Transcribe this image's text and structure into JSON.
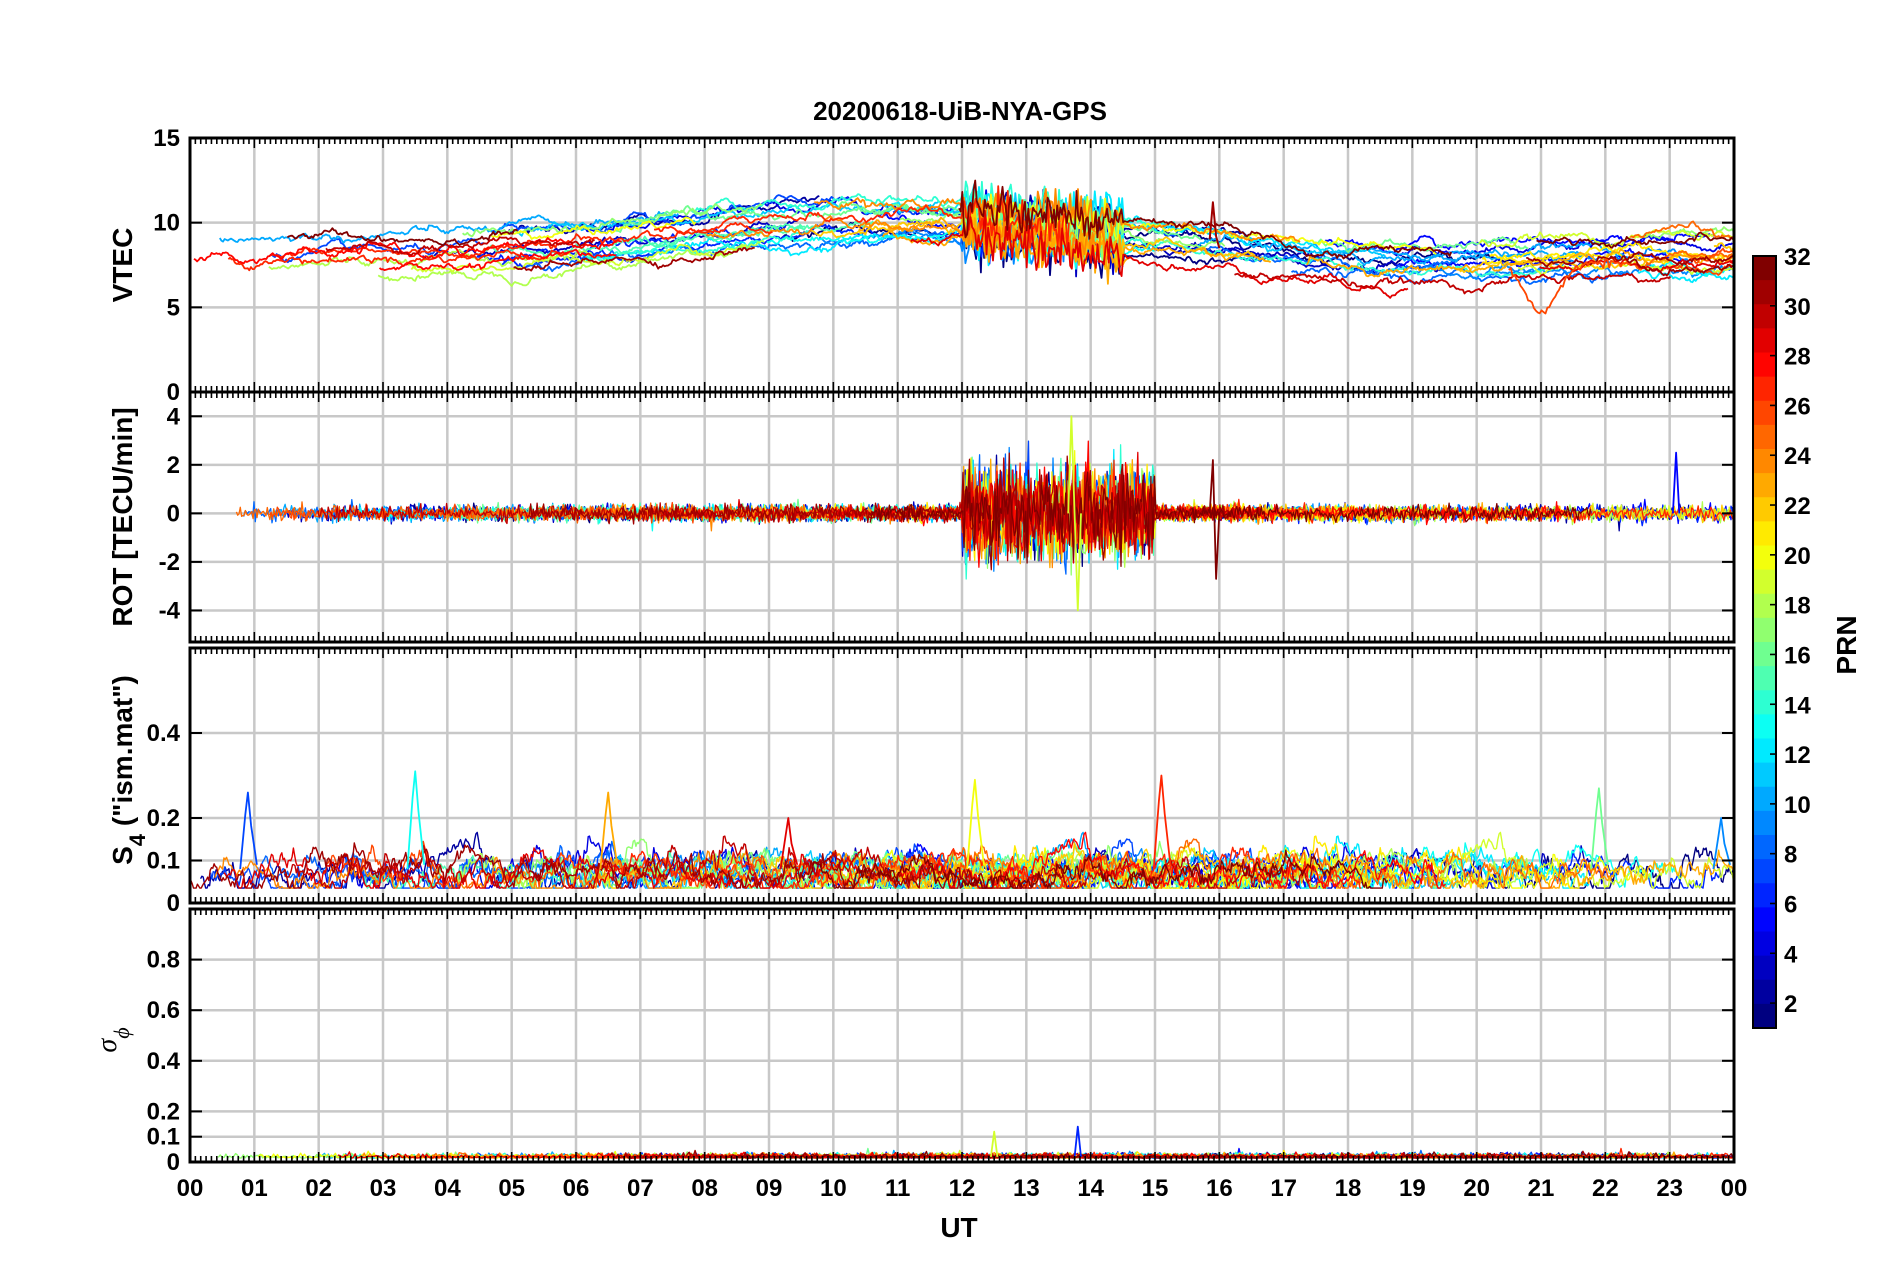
{
  "title": "20200618-UiB-NYA-GPS",
  "xlabel": "UT",
  "x_ticks": [
    "00",
    "01",
    "02",
    "03",
    "04",
    "05",
    "06",
    "07",
    "08",
    "09",
    "10",
    "11",
    "12",
    "13",
    "14",
    "15",
    "16",
    "17",
    "18",
    "19",
    "20",
    "21",
    "22",
    "23",
    "00"
  ],
  "colorbar": {
    "label": "PRN",
    "ticks": [
      "2",
      "4",
      "6",
      "8",
      "10",
      "12",
      "14",
      "16",
      "18",
      "20",
      "22",
      "24",
      "26",
      "28",
      "30",
      "32"
    ],
    "range": [
      1,
      32
    ],
    "colormap": "jet",
    "dark_blue": "#00008f",
    "dark_red": "#800000"
  },
  "panels": [
    {
      "ylabel": "VTEC",
      "ytick_labels": [
        "0",
        "5",
        "10",
        "15"
      ]
    },
    {
      "ylabel": "ROT [TECU/min]",
      "ytick_labels": [
        "-4",
        "-2",
        "0",
        "2",
        "4"
      ]
    },
    {
      "ylabel_main": "S",
      "ylabel_sub": "4",
      "ylabel_rest": " (\"ism.mat\")",
      "ytick_labels": [
        "0",
        "0.1",
        "0.2",
        "0.4"
      ]
    },
    {
      "ylabel_main": "σ",
      "ylabel_sub": "ϕ",
      "ytick_labels": [
        "0",
        "0.1",
        "0.2",
        "0.4",
        "0.6",
        "0.8"
      ]
    }
  ],
  "chart_data": [
    {
      "type": "line",
      "title": "20200618-UiB-NYA-GPS",
      "ylabel": "VTEC",
      "xlabel": "UT",
      "x_unit": "hours UT",
      "xlim": [
        0,
        24
      ],
      "ylim": [
        0,
        15
      ],
      "grid": true,
      "color_by": "PRN",
      "series_count": 32,
      "description_values": {
        "typical_range": [
          6,
          12
        ],
        "peak": [
          12.2,
          13.0
        ],
        "notable_spike": [
          15.9,
          11.2
        ],
        "minimum_dip": [
          21.0,
          4.6
        ]
      }
    },
    {
      "type": "line",
      "ylabel": "ROT [TECU/min]",
      "xlabel": "UT",
      "xlim": [
        0,
        24
      ],
      "ylim": [
        -5.3,
        5
      ],
      "grid": true,
      "color_by": "PRN",
      "description_values": {
        "baseline_noise": [
          -0.5,
          0.5
        ],
        "disturbed_window": [
          12.0,
          15.0
        ],
        "max_spike": [
          13.7,
          4.0
        ],
        "min_spike": [
          13.8,
          -4.0
        ],
        "spike_16UT": [
          [
            15.9,
            2.2
          ],
          [
            15.95,
            -2.7
          ]
        ],
        "spike_23UT": [
          23.1,
          2.5
        ]
      }
    },
    {
      "type": "line",
      "ylabel": "S4",
      "xlabel": "UT",
      "xlim": [
        0,
        24
      ],
      "ylim": [
        0,
        0.6
      ],
      "grid": true,
      "color_by": "PRN",
      "description_values": {
        "baseline": [
          0.04,
          0.12
        ],
        "peaks": [
          [
            0.9,
            0.26
          ],
          [
            3.5,
            0.31
          ],
          [
            6.5,
            0.26
          ],
          [
            9.3,
            0.2
          ],
          [
            12.2,
            0.29
          ],
          [
            15.1,
            0.3
          ],
          [
            21.9,
            0.27
          ],
          [
            23.8,
            0.2
          ]
        ]
      }
    },
    {
      "type": "line",
      "ylabel": "σφ",
      "xlabel": "UT",
      "xlim": [
        0,
        24
      ],
      "ylim": [
        0,
        1
      ],
      "grid": true,
      "color_by": "PRN",
      "description_values": {
        "baseline": [
          0.005,
          0.04
        ],
        "peaks": [
          [
            12.5,
            0.12
          ],
          [
            13.8,
            0.14
          ]
        ]
      }
    }
  ]
}
